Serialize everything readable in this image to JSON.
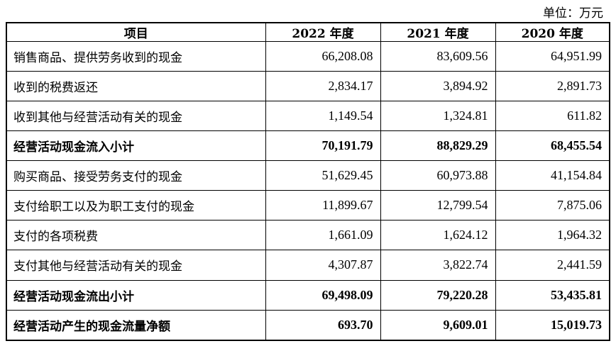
{
  "unit_label": "单位：万元",
  "headers": [
    "项目",
    "2022 年度",
    "2021 年度",
    "2020 年度"
  ],
  "rows": [
    {
      "item": "销售商品、提供劳务收到的现金",
      "v2022": "66,208.08",
      "v2021": "83,609.56",
      "v2020": "64,951.99",
      "bold": false
    },
    {
      "item": "收到的税费返还",
      "v2022": "2,834.17",
      "v2021": "3,894.92",
      "v2020": "2,891.73",
      "bold": false
    },
    {
      "item": "收到其他与经营活动有关的现金",
      "v2022": "1,149.54",
      "v2021": "1,324.81",
      "v2020": "611.82",
      "bold": false
    },
    {
      "item": "经营活动现金流入小计",
      "v2022": "70,191.79",
      "v2021": "88,829.29",
      "v2020": "68,455.54",
      "bold": true
    },
    {
      "item": "购买商品、接受劳务支付的现金",
      "v2022": "51,629.45",
      "v2021": "60,973.88",
      "v2020": "41,154.84",
      "bold": false
    },
    {
      "item": "支付给职工以及为职工支付的现金",
      "v2022": "11,899.67",
      "v2021": "12,799.54",
      "v2020": "7,875.06",
      "bold": false
    },
    {
      "item": "支付的各项税费",
      "v2022": "1,661.09",
      "v2021": "1,624.12",
      "v2020": "1,964.32",
      "bold": false
    },
    {
      "item": "支付其他与经营活动有关的现金",
      "v2022": "4,307.87",
      "v2021": "3,822.74",
      "v2020": "2,441.59",
      "bold": false
    },
    {
      "item": "经营活动现金流出小计",
      "v2022": "69,498.09",
      "v2021": "79,220.28",
      "v2020": "53,435.81",
      "bold": true
    },
    {
      "item": "经营活动产生的现金流量净额",
      "v2022": "693.70",
      "v2021": "9,609.01",
      "v2020": "15,019.73",
      "bold": true
    }
  ]
}
